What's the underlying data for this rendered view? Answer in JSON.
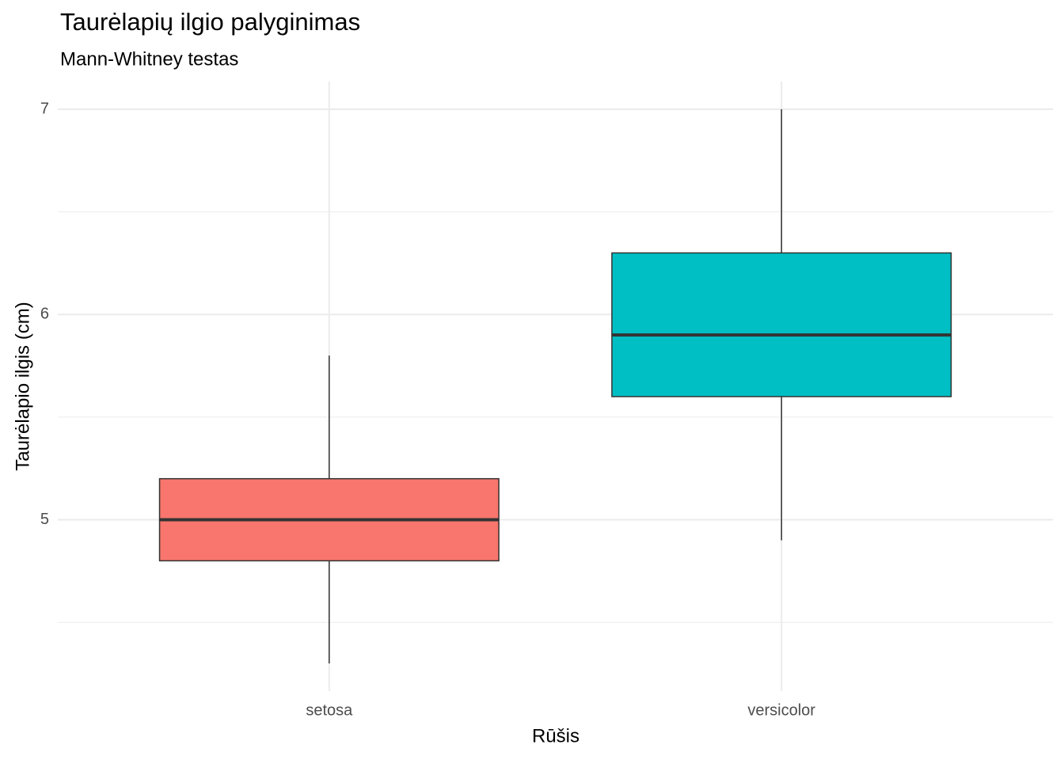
{
  "chart_data": {
    "type": "box",
    "title": "Taurėlapių ilgio palyginimas",
    "subtitle": "Mann-Whitney testas",
    "x_label": "Rūšis",
    "y_label": "Taurėlapio ilgis (cm)",
    "categories": [
      "setosa",
      "versicolor"
    ],
    "boxes": [
      {
        "color": "#F8766D",
        "min": 4.3,
        "q1": 4.8,
        "median": 5.0,
        "q3": 5.2,
        "max": 5.8
      },
      {
        "color": "#00BFC4",
        "min": 4.9,
        "q1": 5.6,
        "median": 5.9,
        "q3": 6.3,
        "max": 7.0
      }
    ],
    "ylim": [
      4.165,
      7.135
    ],
    "yticks": [
      5,
      6,
      7
    ],
    "yminorticks": [
      4.5,
      5.5,
      6.5
    ],
    "grid": true
  }
}
